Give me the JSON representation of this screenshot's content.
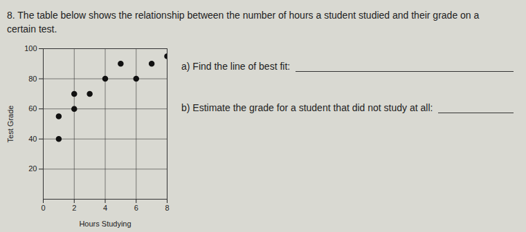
{
  "chart_data": {
    "type": "scatter",
    "title": "8. The table below shows the relationship between the number of hours a student studied and their grade on a certain test.",
    "x_label": "Hours Studying",
    "y_label": "Test Grade",
    "x": [
      1,
      1,
      2,
      2,
      3,
      4,
      5,
      6,
      7,
      8
    ],
    "values": [
      55,
      40,
      60,
      70,
      70,
      80,
      90,
      80,
      90,
      95
    ],
    "color": "#111111",
    "marker": "circle",
    "xlim": [
      0,
      8
    ],
    "xticks": [
      0,
      2,
      4,
      6,
      8
    ],
    "ylim": [
      0,
      100
    ],
    "yticks": [
      20,
      40,
      60,
      80,
      100
    ],
    "grid": true,
    "annotations": [
      "a) Find the line of best fit:",
      "b) Estimate the grade for a student that did not study at all:"
    ]
  }
}
